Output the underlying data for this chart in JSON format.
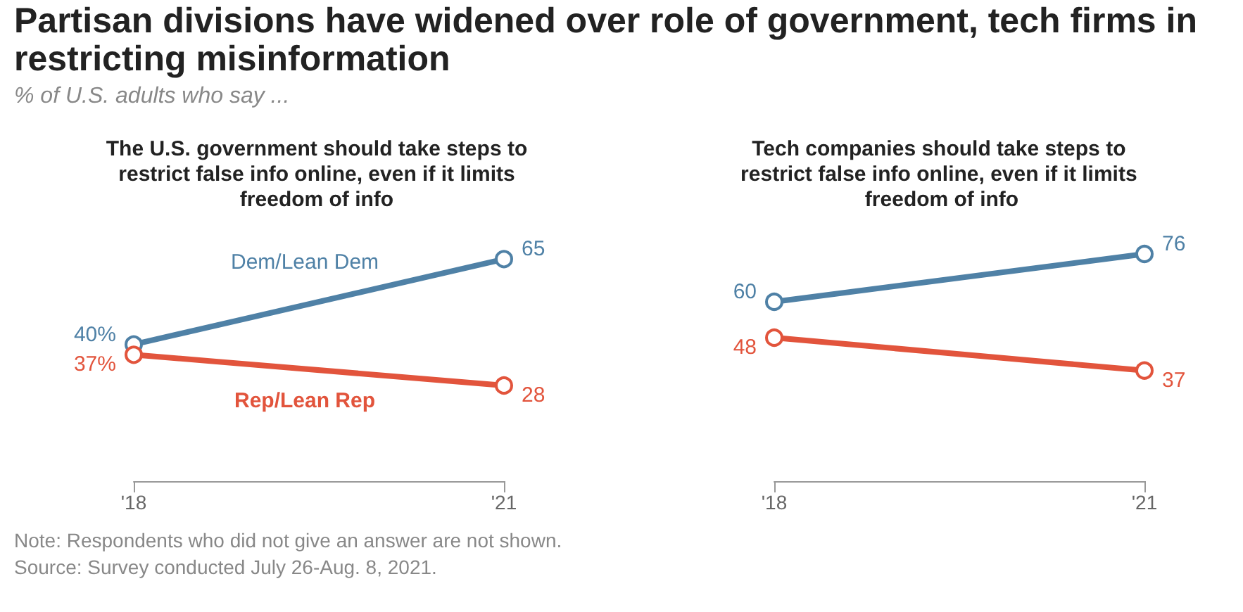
{
  "chart_data": [
    {
      "type": "other",
      "title": "Partisan divisions have widened over role of government, tech firms in restricting misinformation",
      "subtitle": "% of U.S. adults who say ...",
      "annotations": [
        "Note: Respondents who did not give an answer are not shown.",
        "Source: Survey conducted July 26-Aug. 8, 2021."
      ]
    },
    {
      "type": "line",
      "title": "The U.S. government should take steps to restrict false info online, even if it limits freedom of info",
      "categories": [
        "'18",
        "'21"
      ],
      "tick_labels": "x",
      "legend": false,
      "marker": "circle",
      "line_style": "solid",
      "series": [
        {
          "name": "Dem/Lean Dem",
          "color": "#4f81a6",
          "values": [
            40,
            65
          ],
          "value_labels": [
            "40%",
            "65"
          ]
        },
        {
          "name": "Rep/Lean Rep",
          "color": "#e2543c",
          "values": [
            37,
            28
          ],
          "value_labels": [
            "37%",
            "28"
          ]
        }
      ]
    },
    {
      "type": "line",
      "title": "Tech companies should take steps to restrict false info online, even if it limits freedom of info",
      "categories": [
        "'18",
        "'21"
      ],
      "tick_labels": "x",
      "legend": false,
      "marker": "circle",
      "line_style": "solid",
      "series": [
        {
          "color": "#4f81a6",
          "values": [
            60,
            76
          ],
          "value_labels": [
            "60",
            "76"
          ]
        },
        {
          "color": "#e2543c",
          "values": [
            48,
            37
          ],
          "value_labels": [
            "48",
            "37"
          ]
        }
      ]
    }
  ]
}
